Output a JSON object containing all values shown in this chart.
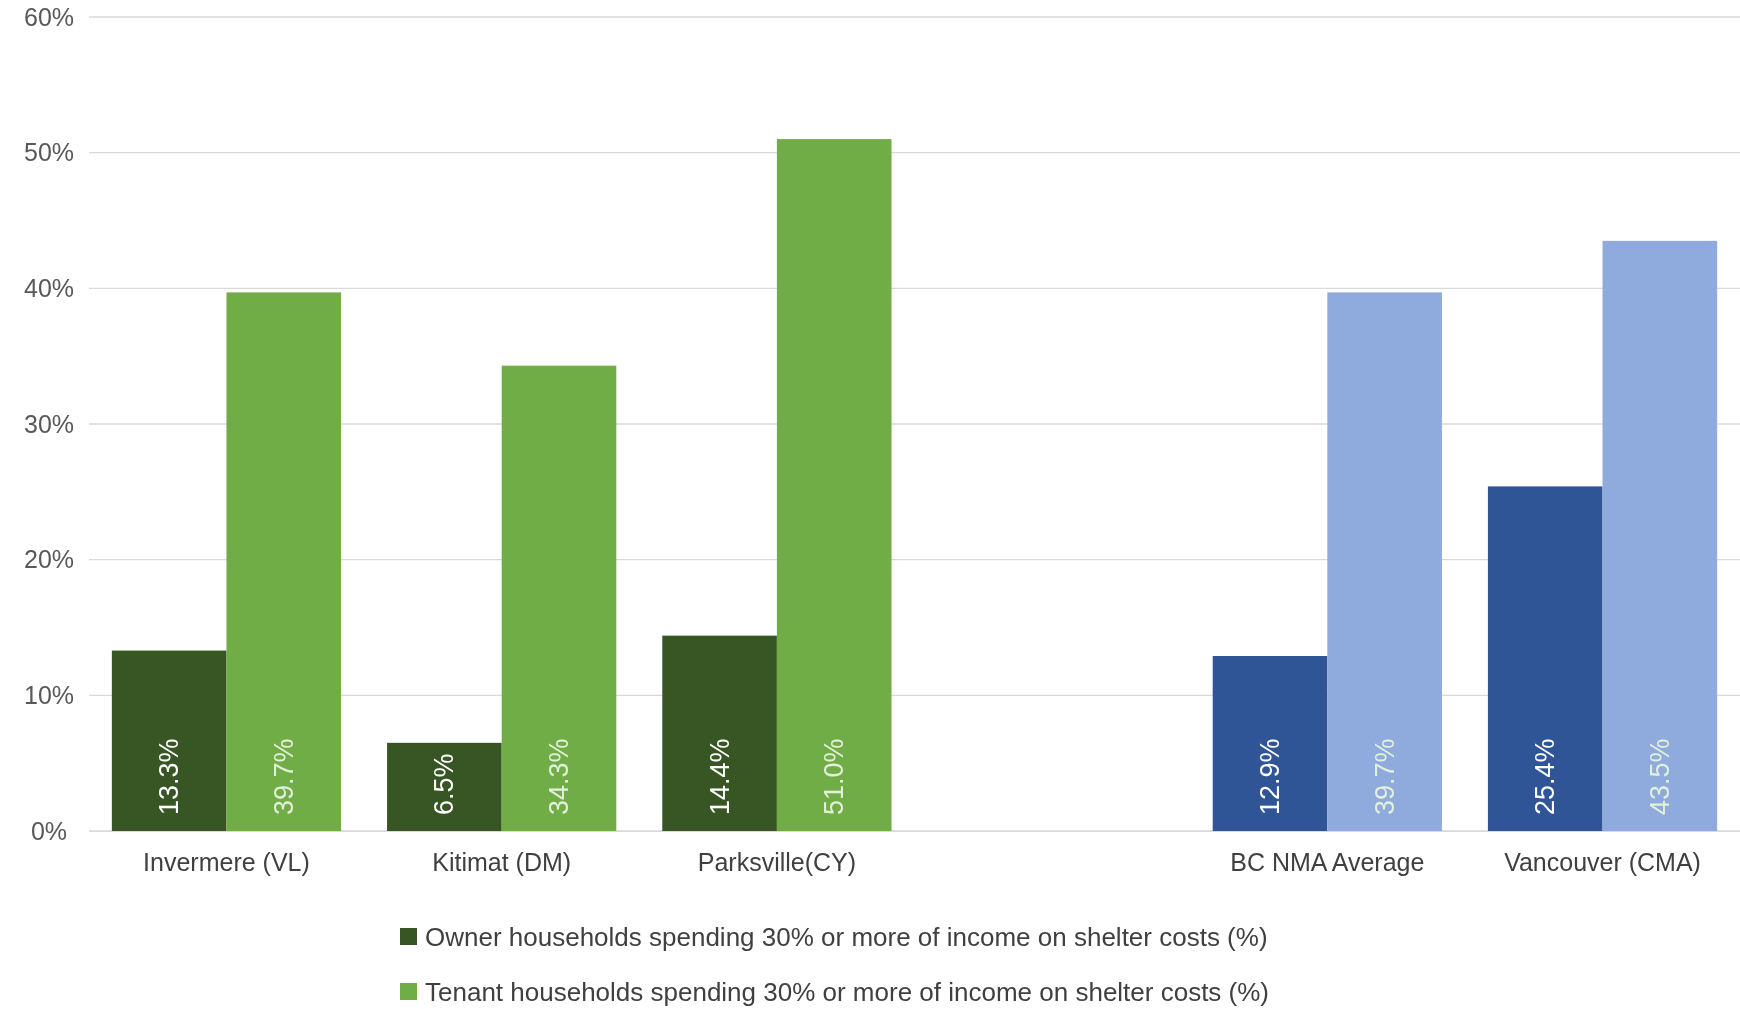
{
  "chart_data": {
    "type": "bar",
    "categories": [
      "Invermere (VL)",
      "Kitimat (DM)",
      "Parksville(CY)",
      null,
      "BC NMA Average",
      "Vancouver (CMA)"
    ],
    "series": [
      {
        "name": "Owner households spending 30% or more of income on shelter costs (%)",
        "color": "#375623",
        "colors": [
          "#375623",
          "#375623",
          "#375623",
          null,
          "#2f5597",
          "#2f5597"
        ],
        "values": [
          13.3,
          6.5,
          14.4,
          null,
          12.9,
          25.4
        ],
        "value_labels": [
          "13.3%",
          "6.5%",
          "14.4%",
          null,
          "12.9%",
          "25.4%"
        ]
      },
      {
        "name": "Tenant households spending 30% or more of income on shelter costs (%)",
        "color": "#70ad47",
        "colors": [
          "#70ad47",
          "#70ad47",
          "#70ad47",
          null,
          "#8faadc",
          "#8faadc"
        ],
        "values": [
          39.7,
          34.3,
          51.0,
          null,
          39.7,
          43.5
        ],
        "value_labels": [
          "39.7%",
          "34.3%",
          "51.0%",
          null,
          "39.7%",
          "43.5%"
        ]
      }
    ],
    "ylim": [
      0,
      60
    ],
    "yticks": [
      {
        "value": 0,
        "label": "0%"
      },
      {
        "value": 10,
        "label": "10%"
      },
      {
        "value": 20,
        "label": "20%"
      },
      {
        "value": 30,
        "label": "30%"
      },
      {
        "value": 40,
        "label": "40%"
      },
      {
        "value": 50,
        "label": "50%"
      },
      {
        "value": 60,
        "label": "60%"
      }
    ],
    "grid": "y",
    "legend": "bottom"
  }
}
